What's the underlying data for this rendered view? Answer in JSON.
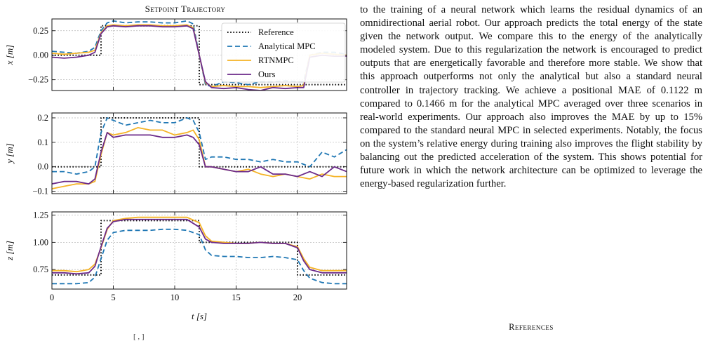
{
  "figure": {
    "title": "Setpoint Trajectory",
    "xlabel": "t [s]",
    "legend": [
      "Reference",
      "Analytical MPC",
      "RTNMPC",
      "Ours"
    ],
    "colors": {
      "Reference": "#111111",
      "Analytical MPC": "#1f77b4",
      "RTNMPC": "#f5b325",
      "Ours": "#6b2a8a"
    },
    "caption_stub": "[ , ]"
  },
  "chart_data": [
    {
      "type": "line",
      "ylabel": "x [m]",
      "xlim": [
        0,
        24
      ],
      "ylim": [
        -0.36,
        0.37
      ],
      "yticks": [
        0.25,
        0.0,
        -0.25
      ],
      "ytick_labels": [
        "0.25",
        "0.00",
        "−0.25"
      ],
      "xticks": [
        0,
        5,
        10,
        15,
        20
      ],
      "xtick_labels": [],
      "legend_position": "top-right",
      "series": [
        {
          "name": "Reference",
          "style": "dotted",
          "x": [
            0,
            4,
            4,
            12,
            12,
            24
          ],
          "y": [
            0.0,
            0.0,
            0.3,
            0.3,
            -0.3,
            -0.3
          ]
        },
        {
          "name": "Analytical MPC",
          "style": "dashed",
          "x": [
            0,
            1,
            2,
            3,
            3.5,
            4,
            4.5,
            5,
            6,
            7,
            8,
            9,
            10,
            11,
            11.5,
            12,
            12.5,
            13,
            14,
            15,
            16,
            17,
            18,
            19,
            20,
            20.5,
            21,
            22,
            23,
            24
          ],
          "y": [
            0.04,
            0.03,
            0.02,
            0.04,
            0.08,
            0.25,
            0.33,
            0.35,
            0.33,
            0.34,
            0.34,
            0.33,
            0.33,
            0.35,
            0.32,
            0.0,
            -0.3,
            -0.32,
            -0.27,
            -0.28,
            -0.3,
            -0.27,
            -0.27,
            -0.26,
            -0.27,
            -0.27,
            0.0,
            0.03,
            0.03,
            0.01
          ]
        },
        {
          "name": "RTNMPC",
          "style": "solid",
          "x": [
            0,
            1,
            2,
            3,
            3.5,
            4,
            4.5,
            5,
            6,
            7,
            8,
            9,
            10,
            11,
            11.5,
            12,
            12.5,
            13,
            14,
            15,
            16,
            17,
            18,
            19,
            20,
            20.5,
            21,
            22,
            23,
            24
          ],
          "y": [
            0.02,
            0.01,
            0.02,
            0.03,
            0.05,
            0.23,
            0.3,
            0.31,
            0.3,
            0.31,
            0.31,
            0.3,
            0.3,
            0.31,
            0.28,
            0.0,
            -0.28,
            -0.32,
            -0.31,
            -0.32,
            -0.32,
            -0.33,
            -0.32,
            -0.31,
            -0.32,
            -0.31,
            0.0,
            0.02,
            0.01,
            0.0
          ]
        },
        {
          "name": "Ours",
          "style": "solid",
          "x": [
            0,
            1,
            2,
            3,
            3.5,
            4,
            4.5,
            5,
            6,
            7,
            8,
            9,
            10,
            11,
            11.5,
            12,
            12.5,
            13,
            14,
            15,
            16,
            17,
            18,
            19,
            20,
            20.5,
            21,
            22,
            23,
            24
          ],
          "y": [
            -0.02,
            -0.03,
            -0.02,
            0.0,
            0.03,
            0.22,
            0.29,
            0.3,
            0.29,
            0.3,
            0.3,
            0.29,
            0.29,
            0.3,
            0.27,
            0.0,
            -0.27,
            -0.33,
            -0.34,
            -0.33,
            -0.35,
            -0.36,
            -0.33,
            -0.34,
            -0.33,
            -0.33,
            -0.02,
            0.0,
            -0.01,
            -0.01
          ]
        }
      ]
    },
    {
      "type": "line",
      "ylabel": "y [m]",
      "xlim": [
        0,
        24
      ],
      "ylim": [
        -0.11,
        0.22
      ],
      "yticks": [
        0.2,
        0.1,
        0.0,
        -0.1
      ],
      "ytick_labels": [
        "0.2",
        "0.1",
        "0.0",
        "−0.1"
      ],
      "xticks": [
        0,
        5,
        10,
        15,
        20
      ],
      "xtick_labels": [],
      "series": [
        {
          "name": "Reference",
          "style": "dotted",
          "x": [
            0,
            4,
            4,
            12,
            12,
            24
          ],
          "y": [
            0.0,
            0.0,
            0.2,
            0.2,
            0.0,
            0.0
          ]
        },
        {
          "name": "Analytical MPC",
          "style": "dashed",
          "x": [
            0,
            1,
            2,
            3,
            3.5,
            4,
            4.5,
            5,
            6,
            7,
            8,
            9,
            10,
            11,
            11.5,
            12,
            12.5,
            13,
            14,
            15,
            16,
            17,
            18,
            19,
            20,
            21,
            22,
            23,
            24
          ],
          "y": [
            -0.02,
            -0.02,
            -0.03,
            -0.02,
            0.0,
            0.14,
            0.2,
            0.19,
            0.17,
            0.18,
            0.19,
            0.18,
            0.18,
            0.2,
            0.19,
            0.14,
            0.03,
            0.04,
            0.04,
            0.03,
            0.03,
            0.02,
            0.03,
            0.02,
            0.02,
            0.0,
            0.06,
            0.04,
            0.07
          ]
        },
        {
          "name": "RTNMPC",
          "style": "solid",
          "x": [
            0,
            1,
            2,
            3,
            3.5,
            4,
            4.5,
            5,
            6,
            7,
            8,
            9,
            10,
            11,
            11.5,
            12,
            12.5,
            13,
            14,
            15,
            16,
            17,
            18,
            19,
            20,
            21,
            22,
            23,
            24
          ],
          "y": [
            -0.09,
            -0.08,
            -0.07,
            -0.07,
            -0.06,
            0.05,
            0.14,
            0.13,
            0.14,
            0.16,
            0.15,
            0.15,
            0.13,
            0.14,
            0.15,
            0.11,
            0.0,
            0.0,
            -0.01,
            -0.02,
            -0.01,
            -0.03,
            -0.04,
            -0.03,
            -0.04,
            -0.05,
            -0.03,
            -0.04,
            -0.04
          ]
        },
        {
          "name": "Ours",
          "style": "solid",
          "x": [
            0,
            1,
            2,
            3,
            3.5,
            4,
            4.5,
            5,
            6,
            7,
            8,
            9,
            10,
            11,
            11.5,
            12,
            12.5,
            13,
            14,
            15,
            16,
            17,
            18,
            19,
            20,
            21,
            22,
            23,
            24
          ],
          "y": [
            -0.07,
            -0.06,
            -0.06,
            -0.07,
            -0.05,
            0.06,
            0.14,
            0.12,
            0.13,
            0.13,
            0.13,
            0.12,
            0.12,
            0.13,
            0.12,
            0.09,
            0.0,
            0.0,
            -0.01,
            -0.02,
            -0.02,
            0.0,
            -0.03,
            -0.03,
            -0.04,
            -0.02,
            -0.04,
            0.0,
            -0.02
          ]
        }
      ]
    },
    {
      "type": "line",
      "ylabel": "z [m]",
      "xlim": [
        0,
        24
      ],
      "ylim": [
        0.57,
        1.28
      ],
      "yticks": [
        1.25,
        1.0,
        0.75
      ],
      "ytick_labels": [
        "1.25",
        "1.00",
        "0.75"
      ],
      "xticks": [
        0,
        5,
        10,
        15,
        20
      ],
      "xtick_labels": [
        "0",
        "5",
        "10",
        "15",
        "20"
      ],
      "series": [
        {
          "name": "Reference",
          "style": "dotted",
          "x": [
            0,
            4,
            4,
            12,
            12,
            20,
            20,
            24
          ],
          "y": [
            0.7,
            0.7,
            1.2,
            1.2,
            1.0,
            1.0,
            0.7,
            0.7
          ]
        },
        {
          "name": "Analytical MPC",
          "style": "dashed",
          "x": [
            0,
            1,
            2,
            3,
            3.5,
            4,
            4.5,
            5,
            6,
            7,
            8,
            9,
            10,
            11,
            12,
            12.5,
            13,
            14,
            15,
            16,
            17,
            18,
            19,
            20,
            20.5,
            21,
            22,
            23,
            24
          ],
          "y": [
            0.62,
            0.62,
            0.62,
            0.63,
            0.68,
            0.85,
            1.02,
            1.09,
            1.11,
            1.11,
            1.11,
            1.12,
            1.12,
            1.11,
            1.07,
            0.93,
            0.88,
            0.87,
            0.87,
            0.86,
            0.86,
            0.87,
            0.86,
            0.84,
            0.74,
            0.67,
            0.63,
            0.62,
            0.62
          ]
        },
        {
          "name": "RTNMPC",
          "style": "solid",
          "x": [
            0,
            1,
            2,
            3,
            3.5,
            4,
            4.5,
            5,
            6,
            7,
            8,
            9,
            10,
            11,
            12,
            12.5,
            13,
            14,
            15,
            16,
            17,
            18,
            19,
            20,
            20.5,
            21,
            22,
            23,
            24
          ],
          "y": [
            0.74,
            0.74,
            0.73,
            0.75,
            0.8,
            0.95,
            1.12,
            1.2,
            1.22,
            1.23,
            1.23,
            1.23,
            1.23,
            1.23,
            1.18,
            1.06,
            1.01,
            1.0,
            0.99,
            0.99,
            1.0,
            0.99,
            0.99,
            0.96,
            0.85,
            0.77,
            0.74,
            0.74,
            0.74
          ]
        },
        {
          "name": "Ours",
          "style": "solid",
          "x": [
            0,
            1,
            2,
            3,
            3.5,
            4,
            4.5,
            5,
            6,
            7,
            8,
            9,
            10,
            11,
            12,
            12.5,
            13,
            14,
            15,
            16,
            17,
            18,
            19,
            20,
            20.5,
            21,
            22,
            23,
            24
          ],
          "y": [
            0.72,
            0.72,
            0.71,
            0.72,
            0.78,
            0.96,
            1.13,
            1.19,
            1.21,
            1.21,
            1.21,
            1.21,
            1.21,
            1.21,
            1.14,
            1.03,
            1.0,
            0.99,
            0.99,
            0.99,
            1.0,
            0.99,
            0.99,
            0.95,
            0.83,
            0.75,
            0.72,
            0.72,
            0.72
          ]
        }
      ]
    }
  ],
  "text": {
    "body": "to the training of a neural network which learns the residual dynamics of an omnidirectional aerial robot. Our approach predicts the total energy of the state given the network output. We compare this to the energy of the analytically modeled system. Due to this regularization the network is encouraged to predict outputs that are energetically favorable and therefore more stable. We show that this approach outperforms not only the analytical but also a standard neural controller in trajectory tracking. We achieve a positional MAE of 0.1122 m compared to 0.1466 m for the analytical MPC averaged over three scenarios in real-world experiments. Our approach also improves the MAE by up to 15% compared to the standard neural MPC in selected experiments. Notably, the focus on the system’s relative energy during training also improves the flight stability by balancing out the predicted acceleration of the system. This shows potential for future work in which the network architecture can be optimized to leverage the energy-based regularization further.",
    "references_heading": "References"
  }
}
